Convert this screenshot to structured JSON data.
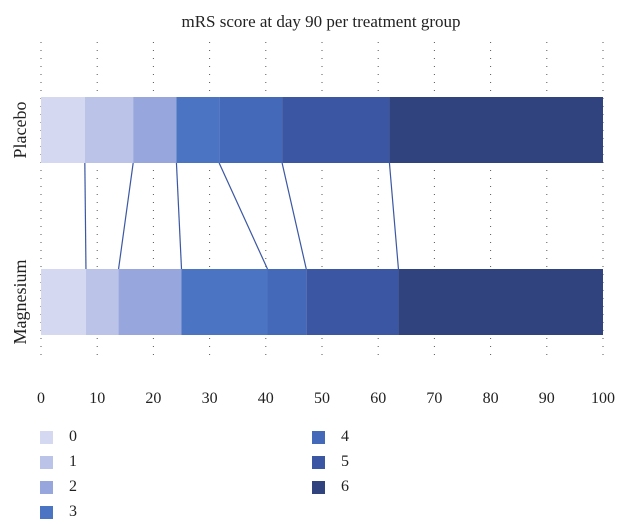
{
  "chart_data": {
    "type": "stacked-bar-horizontal",
    "title": "mRS score at day 90 per treatment group",
    "categories": [
      "Placebo",
      "Magnesium"
    ],
    "x_ticks": [
      0,
      10,
      20,
      30,
      40,
      50,
      60,
      70,
      80,
      90,
      100
    ],
    "xlim": [
      0,
      100
    ],
    "grid": "dotted",
    "legend_placement": "bottom",
    "connector_lines": true,
    "series": [
      {
        "name": "0",
        "color": "#d4d8f0",
        "values": [
          7.8,
          8.0
        ]
      },
      {
        "name": "1",
        "color": "#bcc3e8",
        "values": [
          8.6,
          5.8
        ]
      },
      {
        "name": "2",
        "color": "#97a7dd",
        "values": [
          7.7,
          11.2
        ]
      },
      {
        "name": "3",
        "color": "#4b75c2",
        "values": [
          7.6,
          15.3
        ]
      },
      {
        "name": "4",
        "color": "#4469b8",
        "values": [
          11.2,
          6.9
        ]
      },
      {
        "name": "5",
        "color": "#3b57a3",
        "values": [
          19.1,
          16.4
        ]
      },
      {
        "name": "6",
        "color": "#31437f",
        "values": [
          38.0,
          36.4
        ]
      }
    ]
  }
}
